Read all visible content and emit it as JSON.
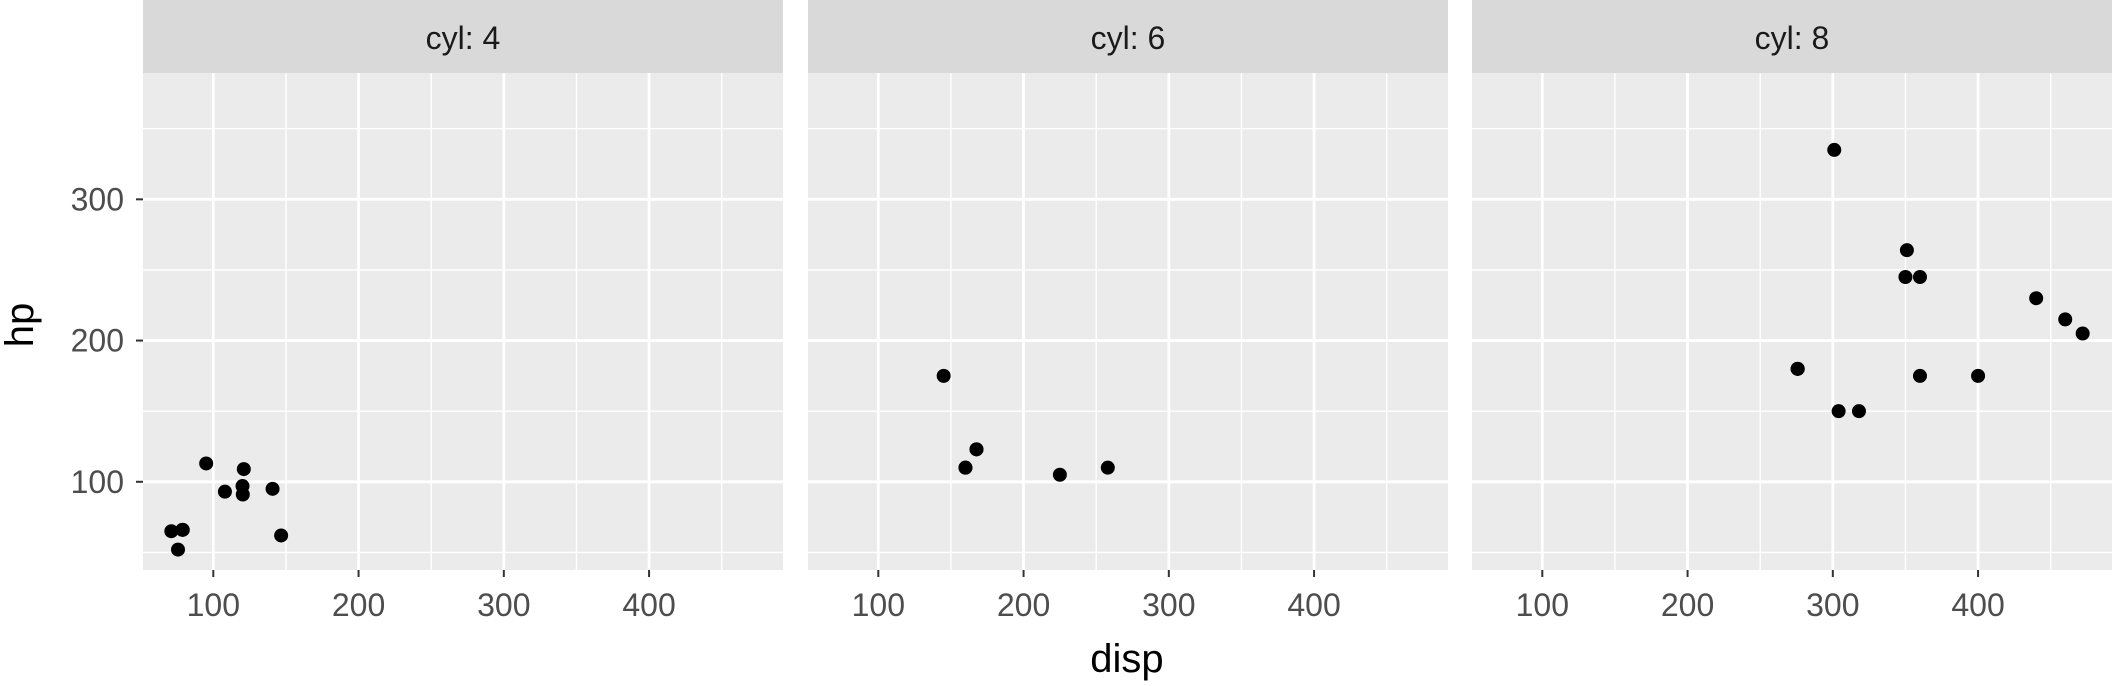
{
  "chart_data": {
    "type": "scatter",
    "facet_variable": "cyl",
    "xlabel": "disp",
    "ylabel": "hp",
    "xlim": [
      51.6,
      492.2
    ],
    "ylim": [
      37.55,
      389.45
    ],
    "x_ticks": [
      100,
      200,
      300,
      400
    ],
    "y_ticks": [
      100,
      200,
      300
    ],
    "x_minor": [
      150,
      250,
      350,
      450
    ],
    "y_minor": [
      50,
      150,
      250,
      350
    ],
    "grid": true,
    "colors": {
      "panel_bg": "#ebebeb",
      "strip_bg": "#d9d9d9",
      "grid": "#ffffff",
      "point": "#000000",
      "tick": "#333333"
    },
    "panels": [
      {
        "label": "cyl: 4",
        "points": [
          [
            108,
            93
          ],
          [
            146.7,
            62
          ],
          [
            140.8,
            95
          ],
          [
            78.7,
            66
          ],
          [
            75.7,
            52
          ],
          [
            71.1,
            65
          ],
          [
            120.1,
            97
          ],
          [
            79,
            66
          ],
          [
            120.3,
            91
          ],
          [
            95.1,
            113
          ],
          [
            121,
            109
          ]
        ]
      },
      {
        "label": "cyl: 6",
        "points": [
          [
            160,
            110
          ],
          [
            160,
            110
          ],
          [
            258,
            110
          ],
          [
            225,
            105
          ],
          [
            167.6,
            123
          ],
          [
            167.6,
            123
          ],
          [
            145,
            175
          ]
        ]
      },
      {
        "label": "cyl: 8",
        "points": [
          [
            360,
            175
          ],
          [
            360,
            245
          ],
          [
            275.8,
            180
          ],
          [
            275.8,
            180
          ],
          [
            275.8,
            180
          ],
          [
            472,
            205
          ],
          [
            460,
            215
          ],
          [
            440,
            230
          ],
          [
            318,
            150
          ],
          [
            304,
            150
          ],
          [
            350,
            245
          ],
          [
            400,
            175
          ],
          [
            351,
            264
          ],
          [
            301,
            335
          ]
        ]
      }
    ]
  }
}
